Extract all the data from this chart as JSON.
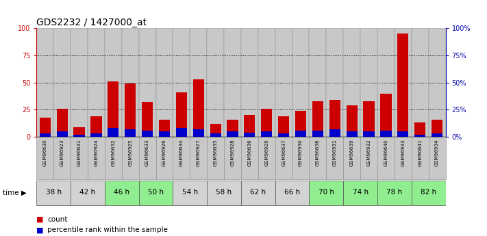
{
  "title": "GDS2232 / 1427000_at",
  "samples": [
    "GSM96630",
    "GSM96923",
    "GSM96631",
    "GSM96924",
    "GSM96632",
    "GSM96925",
    "GSM96633",
    "GSM96926",
    "GSM96634",
    "GSM96927",
    "GSM96635",
    "GSM96928",
    "GSM96636",
    "GSM96929",
    "GSM96637",
    "GSM96930",
    "GSM96638",
    "GSM96931",
    "GSM96639",
    "GSM96932",
    "GSM96640",
    "GSM96933",
    "GSM96641",
    "GSM96934"
  ],
  "time_groups": [
    {
      "label": "38 h",
      "indices": [
        0,
        1
      ],
      "color": "#d3d3d3"
    },
    {
      "label": "42 h",
      "indices": [
        2,
        3
      ],
      "color": "#d3d3d3"
    },
    {
      "label": "46 h",
      "indices": [
        4,
        5
      ],
      "color": "#90ee90"
    },
    {
      "label": "50 h",
      "indices": [
        6,
        7
      ],
      "color": "#90ee90"
    },
    {
      "label": "54 h",
      "indices": [
        8,
        9
      ],
      "color": "#d3d3d3"
    },
    {
      "label": "58 h",
      "indices": [
        10,
        11
      ],
      "color": "#d3d3d3"
    },
    {
      "label": "62 h",
      "indices": [
        12,
        13
      ],
      "color": "#d3d3d3"
    },
    {
      "label": "66 h",
      "indices": [
        14,
        15
      ],
      "color": "#d3d3d3"
    },
    {
      "label": "70 h",
      "indices": [
        16,
        17
      ],
      "color": "#90ee90"
    },
    {
      "label": "74 h",
      "indices": [
        18,
        19
      ],
      "color": "#90ee90"
    },
    {
      "label": "78 h",
      "indices": [
        20,
        21
      ],
      "color": "#90ee90"
    },
    {
      "label": "82 h",
      "indices": [
        22,
        23
      ],
      "color": "#90ee90"
    }
  ],
  "count_values": [
    18,
    26,
    9,
    19,
    51,
    49,
    32,
    16,
    41,
    53,
    12,
    16,
    20,
    26,
    19,
    24,
    33,
    34,
    29,
    33,
    40,
    95,
    13,
    16
  ],
  "percentile_values": [
    3,
    5,
    2,
    3,
    8,
    7,
    6,
    5,
    8,
    7,
    3,
    5,
    4,
    5,
    3,
    6,
    6,
    7,
    5,
    5,
    6,
    5,
    2,
    3
  ],
  "bar_color_red": "#cc0000",
  "bar_color_blue": "#0000cc",
  "ylim": [
    0,
    100
  ],
  "yticks": [
    0,
    25,
    50,
    75,
    100
  ],
  "bg_color": "#ffffff",
  "left_ytick_color": "#cc0000",
  "right_ytick_color": "#0000aa",
  "title_fontsize": 10,
  "tick_fontsize": 7,
  "legend_count_label": "count",
  "legend_percentile_label": "percentile rank within the sample",
  "sample_bg_color": "#c8c8c8",
  "sample_border_color": "#888888"
}
